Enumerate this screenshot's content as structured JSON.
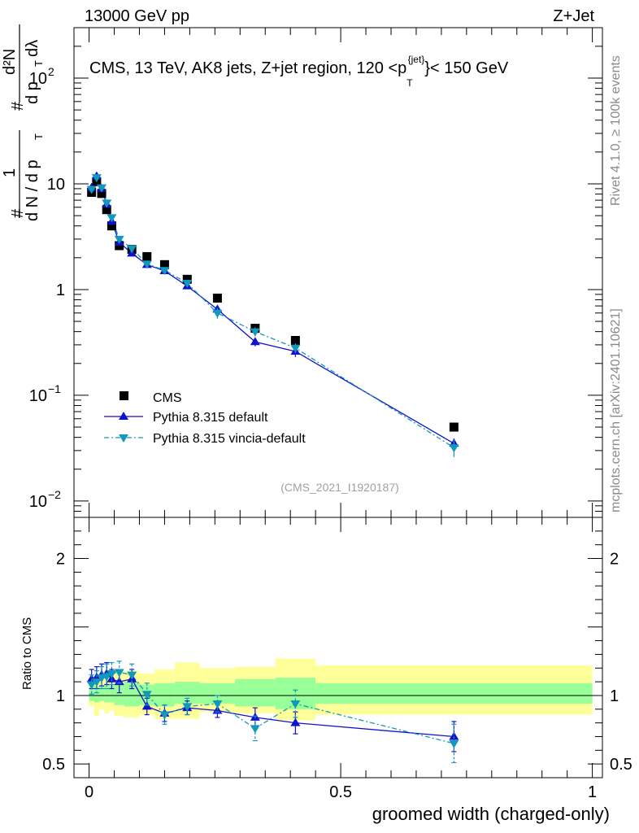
{
  "header": {
    "left": "13000 GeV pp",
    "right": "Z+Jet"
  },
  "side_labels": {
    "rivet": "Rivet 4.1.0, ≥ 100k events",
    "mcplots": "mcplots.cern.ch [arXiv:2401.10621]"
  },
  "chart_data": {
    "type": "scatter",
    "title": "CMS, 13 TeV, AK8 jets, Z+jet region, 120 <p_T^{jet}< 150 GeV",
    "title_parts": {
      "before": "CMS, 13 TeV, AK8 jets, Z+jet region, 120 <p",
      "superscript": "{jet}",
      "subscript": "T",
      "after": "}< 150 GeV"
    },
    "analysis_id": "(CMS_2021_I1920187)",
    "xlabel": "groomed width (charged-only)",
    "ylabel_main": "1/N dN/dp_T d^2N/dp_T dλ",
    "ylabel_main_parts": {
      "hash": "#",
      "one": "1",
      "denom1": "d N / d p",
      "denom1_sub": "T",
      "num2": "d²N",
      "denom2": "d p",
      "denom2_sub": "T",
      "denom2_tail": "dλ"
    },
    "ylabel_ratio": "Ratio to CMS",
    "xlim": [
      -0.03,
      1.02
    ],
    "ylim_main": [
      0.007,
      300
    ],
    "ylim_ratio": [
      0.4,
      2.3
    ],
    "x_ticks": [
      {
        "value": 0,
        "label": "0"
      },
      {
        "value": 0.5,
        "label": "0.5"
      },
      {
        "value": 1,
        "label": "1"
      }
    ],
    "y_ticks_main": [
      {
        "value": 0.01,
        "base": "10",
        "exp": "−2"
      },
      {
        "value": 0.1,
        "base": "10",
        "exp": "−1"
      },
      {
        "value": 1,
        "base": "1",
        "exp": ""
      },
      {
        "value": 10,
        "base": "10",
        "exp": ""
      },
      {
        "value": 100,
        "base": "10",
        "exp": "2"
      }
    ],
    "y_ticks_ratio": [
      {
        "value": 0.5,
        "label": "0.5"
      },
      {
        "value": 1,
        "label": "1"
      },
      {
        "value": 2,
        "label": "2"
      }
    ],
    "bins": [
      {
        "lo": 0.0,
        "hi": 0.01
      },
      {
        "lo": 0.01,
        "hi": 0.02
      },
      {
        "lo": 0.02,
        "hi": 0.03
      },
      {
        "lo": 0.03,
        "hi": 0.04
      },
      {
        "lo": 0.04,
        "hi": 0.05
      },
      {
        "lo": 0.05,
        "hi": 0.07
      },
      {
        "lo": 0.07,
        "hi": 0.1
      },
      {
        "lo": 0.1,
        "hi": 0.13
      },
      {
        "lo": 0.13,
        "hi": 0.17
      },
      {
        "lo": 0.17,
        "hi": 0.22
      },
      {
        "lo": 0.22,
        "hi": 0.29
      },
      {
        "lo": 0.29,
        "hi": 0.37
      },
      {
        "lo": 0.37,
        "hi": 0.45
      },
      {
        "lo": 0.45,
        "hi": 1.0
      }
    ],
    "band_inner": [
      [
        0.96,
        1.06
      ],
      [
        0.95,
        1.07
      ],
      [
        0.96,
        1.07
      ],
      [
        0.95,
        1.08
      ],
      [
        0.95,
        1.08
      ],
      [
        0.93,
        1.09
      ],
      [
        0.92,
        1.1
      ],
      [
        0.93,
        1.08
      ],
      [
        0.92,
        1.09
      ],
      [
        0.94,
        1.1
      ],
      [
        0.94,
        1.09
      ],
      [
        0.92,
        1.12
      ],
      [
        0.9,
        1.13
      ],
      [
        0.94,
        1.09
      ]
    ],
    "band_outer": [
      [
        0.92,
        1.1
      ],
      [
        0.85,
        1.14
      ],
      [
        0.9,
        1.12
      ],
      [
        0.87,
        1.15
      ],
      [
        0.89,
        1.13
      ],
      [
        0.85,
        1.17
      ],
      [
        0.84,
        1.18
      ],
      [
        0.86,
        1.16
      ],
      [
        0.83,
        1.19
      ],
      [
        0.83,
        1.24
      ],
      [
        0.88,
        1.2
      ],
      [
        0.87,
        1.21
      ],
      [
        0.82,
        1.27
      ],
      [
        0.86,
        1.22
      ]
    ],
    "series": [
      {
        "name": "CMS",
        "color": "#000000",
        "marker": "square",
        "x": [
          0.005,
          0.015,
          0.025,
          0.035,
          0.045,
          0.06,
          0.085,
          0.115,
          0.15,
          0.195,
          0.255,
          0.33,
          0.41,
          0.725
        ],
        "y": [
          8.3,
          10.5,
          8.1,
          5.7,
          4.0,
          2.6,
          2.4,
          2.05,
          1.72,
          1.25,
          0.83,
          0.43,
          0.33,
          0.05
        ]
      },
      {
        "name": "Pythia 8.315 default",
        "color": "#1111cc",
        "marker": "triangle-up",
        "line": "solid",
        "x": [
          0.005,
          0.015,
          0.025,
          0.035,
          0.045,
          0.06,
          0.085,
          0.115,
          0.15,
          0.195,
          0.255,
          0.33,
          0.41,
          0.725
        ],
        "y": [
          9.2,
          11.8,
          9.0,
          6.4,
          4.4,
          2.8,
          2.2,
          1.72,
          1.5,
          1.08,
          0.65,
          0.32,
          0.26,
          0.035
        ],
        "yerr": [
          0.3,
          0.4,
          0.35,
          0.25,
          0.2,
          0.12,
          0.1,
          0.08,
          0.07,
          0.06,
          0.05,
          0.03,
          0.03,
          0.004
        ],
        "ratio": [
          1.12,
          1.13,
          1.15,
          1.16,
          1.12,
          1.1,
          1.12,
          0.92,
          0.87,
          0.91,
          0.89,
          0.84,
          0.8,
          0.7
        ],
        "ratio_err": [
          0.07,
          0.08,
          0.08,
          0.08,
          0.07,
          0.08,
          0.07,
          0.06,
          0.06,
          0.05,
          0.05,
          0.07,
          0.08,
          0.11
        ]
      },
      {
        "name": "Pythia 8.315 vincia-default",
        "color": "#1199bb",
        "marker": "triangle-down",
        "line": "dashdot",
        "x": [
          0.005,
          0.015,
          0.025,
          0.035,
          0.045,
          0.06,
          0.085,
          0.115,
          0.15,
          0.195,
          0.255,
          0.33,
          0.41,
          0.725
        ],
        "y": [
          8.9,
          11.5,
          9.2,
          6.6,
          4.8,
          3.0,
          2.45,
          1.75,
          1.52,
          1.15,
          0.6,
          0.4,
          0.28,
          0.032
        ],
        "yerr": [
          0.3,
          0.4,
          0.35,
          0.25,
          0.22,
          0.14,
          0.12,
          0.09,
          0.08,
          0.07,
          0.07,
          0.04,
          0.03,
          0.006
        ],
        "ratio": [
          1.08,
          1.1,
          1.13,
          1.14,
          1.16,
          1.17,
          1.15,
          1.01,
          0.86,
          0.92,
          0.94,
          0.76,
          0.94,
          0.65
        ],
        "ratio_err": [
          0.07,
          0.08,
          0.08,
          0.09,
          0.08,
          0.08,
          0.08,
          0.08,
          0.07,
          0.06,
          0.06,
          0.09,
          0.1,
          0.14
        ]
      }
    ],
    "legend_position": "bottom-left"
  }
}
